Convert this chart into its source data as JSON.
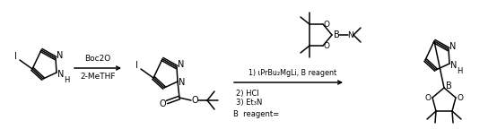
{
  "background": "#ffffff",
  "figsize": [
    5.54,
    1.44
  ],
  "dpi": 100,
  "arrow1_top": "Boc2O",
  "arrow1_bot": "2-MeTHF",
  "arrow2_top": "1) ιPrBu2MgLi, B reagent",
  "arrow2_mid": "2) HCl",
  "arrow2_bot": "3) Et₃N",
  "b_reagent_text": "B  reagent="
}
